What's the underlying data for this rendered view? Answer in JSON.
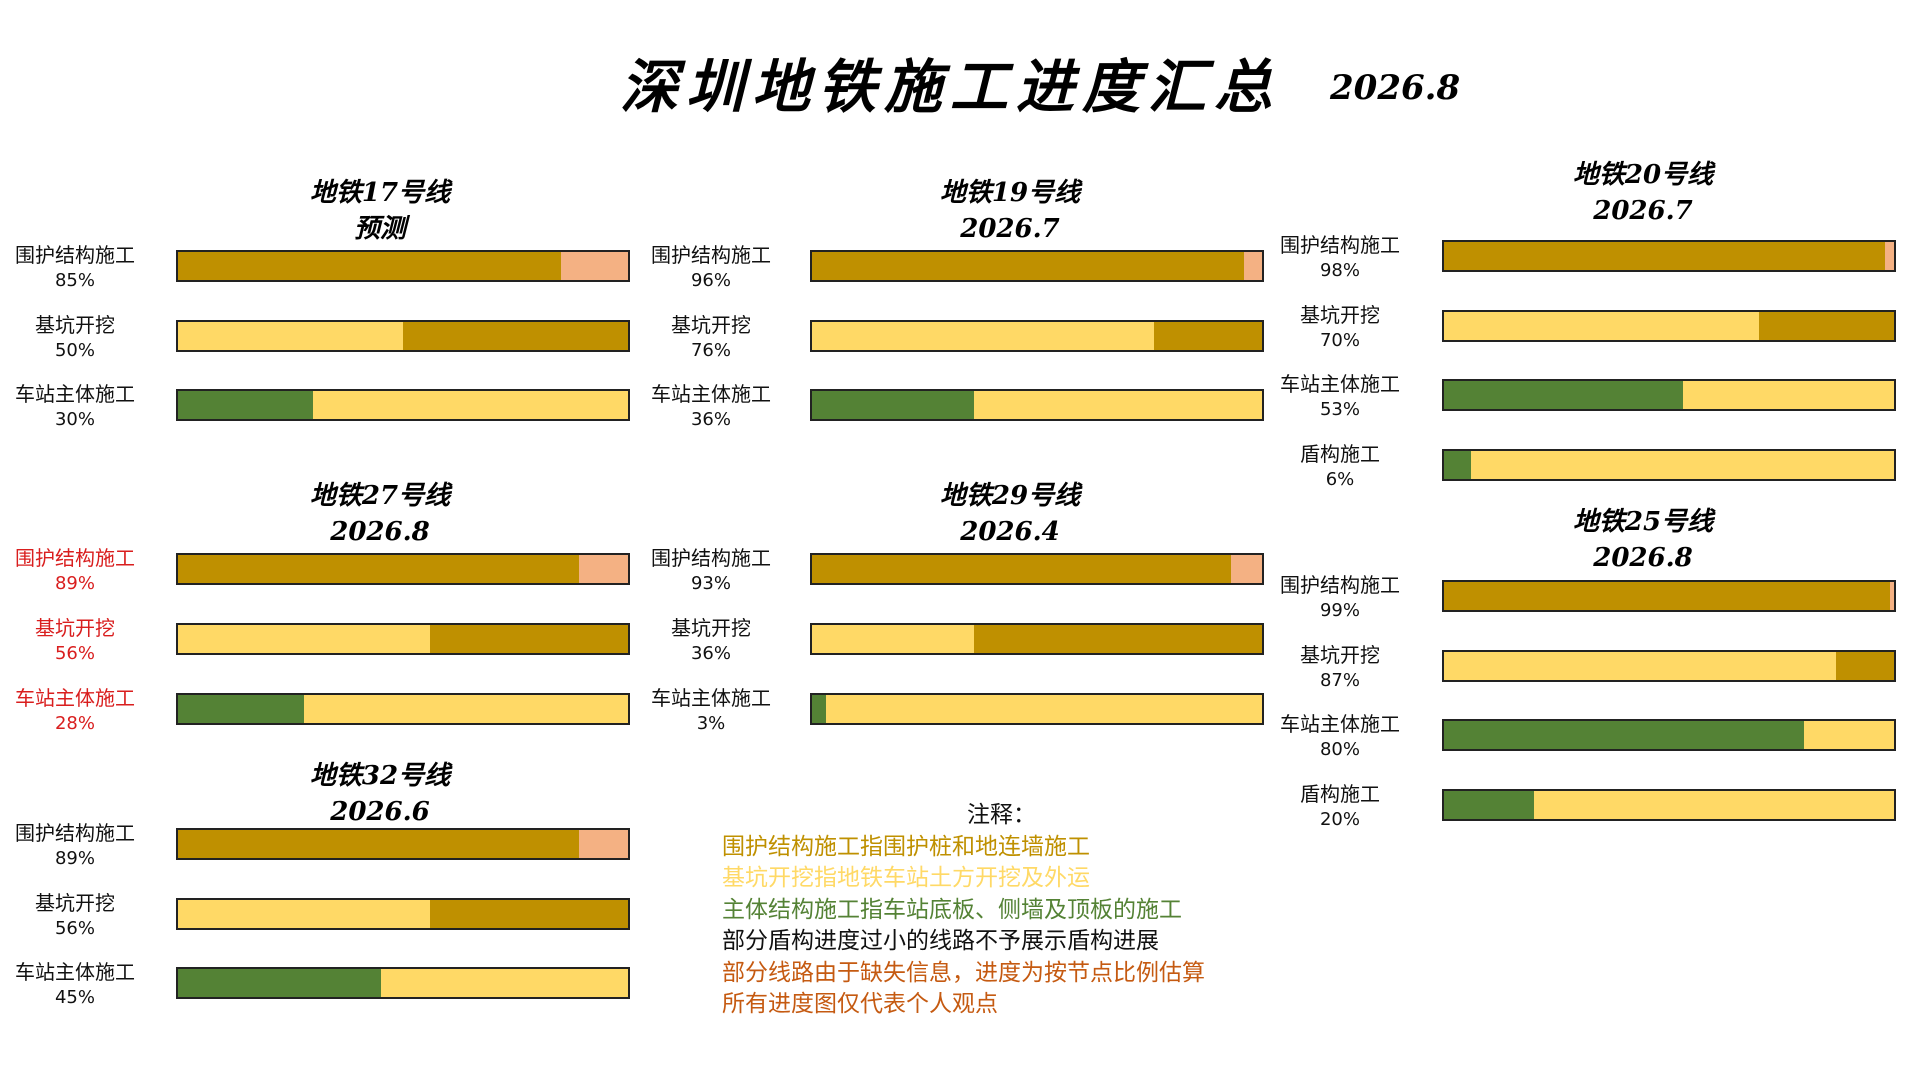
{
  "header": {
    "title": "深圳地铁施工进度汇总",
    "date": "2026.8"
  },
  "colors": {
    "done_enclosure": "#BF9000",
    "remaining_enclosure": "#F4B183",
    "excavation": "#FFD966",
    "main_structure": "#548235",
    "shield": "#548235",
    "note_text_red": "#D91E1E"
  },
  "chart_data": [
    {
      "type": "bar",
      "title": "地铁17号线",
      "subtitle": "预测",
      "rows": [
        {
          "label": "围护结构施工",
          "value": 85,
          "pct_text": "85%"
        },
        {
          "label": "基坑开挖",
          "value": 50,
          "pct_text": "50%"
        },
        {
          "label": "车站主体施工",
          "value": 30,
          "pct_text": "30%"
        }
      ]
    },
    {
      "type": "bar",
      "title": "地铁19号线",
      "subtitle": "2026.7",
      "rows": [
        {
          "label": "围护结构施工",
          "value": 96,
          "pct_text": "96%"
        },
        {
          "label": "基坑开挖",
          "value": 76,
          "pct_text": "76%"
        },
        {
          "label": "车站主体施工",
          "value": 36,
          "pct_text": "36%"
        }
      ]
    },
    {
      "type": "bar",
      "title": "地铁20号线",
      "subtitle": "2026.7",
      "rows": [
        {
          "label": "围护结构施工",
          "value": 98,
          "pct_text": "98%"
        },
        {
          "label": "基坑开挖",
          "value": 70,
          "pct_text": "70%"
        },
        {
          "label": "车站主体施工",
          "value": 53,
          "pct_text": "53%"
        },
        {
          "label": "盾构施工",
          "value": 6,
          "pct_text": "6%"
        }
      ]
    },
    {
      "type": "bar",
      "title": "地铁27号线",
      "subtitle": "2026.8",
      "label_color": "red",
      "rows": [
        {
          "label": "围护结构施工",
          "value": 89,
          "pct_text": "89%"
        },
        {
          "label": "基坑开挖",
          "value": 56,
          "pct_text": "56%"
        },
        {
          "label": "车站主体施工",
          "value": 28,
          "pct_text": "28%"
        }
      ]
    },
    {
      "type": "bar",
      "title": "地铁29号线",
      "subtitle": "2026.4",
      "rows": [
        {
          "label": "围护结构施工",
          "value": 93,
          "pct_text": "93%"
        },
        {
          "label": "基坑开挖",
          "value": 36,
          "pct_text": "36%"
        },
        {
          "label": "车站主体施工",
          "value": 3,
          "pct_text": "3%"
        }
      ]
    },
    {
      "type": "bar",
      "title": "地铁25号线",
      "subtitle": "2026.8",
      "rows": [
        {
          "label": "围护结构施工",
          "value": 99,
          "pct_text": "99%"
        },
        {
          "label": "基坑开挖",
          "value": 87,
          "pct_text": "87%"
        },
        {
          "label": "车站主体施工",
          "value": 80,
          "pct_text": "80%"
        },
        {
          "label": "盾构施工",
          "value": 20,
          "pct_text": "20%"
        }
      ]
    },
    {
      "type": "bar",
      "title": "地铁32号线",
      "subtitle": "2026.6",
      "rows": [
        {
          "label": "围护结构施工",
          "value": 89,
          "pct_text": "89%"
        },
        {
          "label": "基坑开挖",
          "value": 56,
          "pct_text": "56%"
        },
        {
          "label": "车站主体施工",
          "value": 45,
          "pct_text": "45%"
        }
      ]
    }
  ],
  "notes": {
    "heading": "注释：",
    "lines": [
      {
        "text": "围护结构施工指围护桩和地连墙施工",
        "color": "#BF9000"
      },
      {
        "text": "基坑开挖指地铁车站土方开挖及外运",
        "color": "#FFD966"
      },
      {
        "text": "主体结构施工指车站底板、侧墙及顶板的施工",
        "color": "#548235"
      },
      {
        "text": "部分盾构进度过小的线路不予展示盾构进展",
        "color": "#111111"
      },
      {
        "text": "部分线路由于缺失信息，进度为按节点比例估算",
        "color": "#C55A11"
      },
      {
        "text": "所有进度图仅代表个人观点",
        "color": "#C55A11"
      }
    ]
  }
}
